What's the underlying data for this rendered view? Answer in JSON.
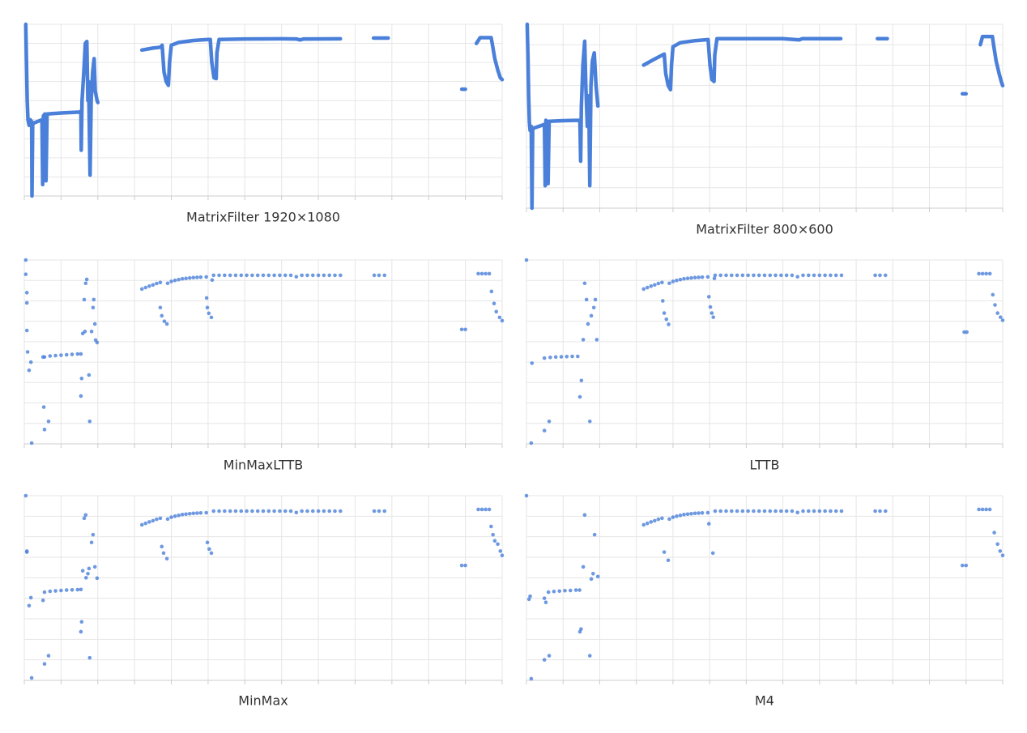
{
  "chart_data": [
    {
      "type": "line",
      "title": "MatrixFilter 1920×1080",
      "color": "#4a80d9",
      "line_width": 4.5,
      "grid": true,
      "xlim": [
        0,
        130
      ],
      "ylim": [
        0,
        90
      ],
      "xticks": [
        0,
        10,
        20,
        30,
        40,
        50,
        60,
        70,
        80,
        90,
        100,
        110,
        120,
        130
      ],
      "yticks": [
        0,
        10,
        20,
        30,
        40,
        50,
        60,
        70,
        80,
        90
      ],
      "x": [
        0.4,
        0.6,
        0.8,
        1.0,
        1.3,
        1.6,
        2.0,
        2.1,
        2.3,
        4.8,
        5.0,
        5.2,
        5.6,
        5.9,
        6.2,
        10,
        15,
        15.4,
        15.5,
        15.7,
        16.2,
        16.6,
        17.0,
        17.3,
        17.5,
        17.9,
        18.2,
        18.6,
        19.0,
        19.3,
        19.8,
        20,
        null,
        32,
        35,
        37,
        37.5,
        38,
        38.6,
        39.2,
        39.5,
        40,
        42,
        46,
        50,
        50.6,
        51,
        51.6,
        52.2,
        52.4,
        53,
        60,
        70,
        74,
        75,
        76,
        86,
        null,
        95,
        99,
        null,
        119,
        120,
        null,
        123,
        124,
        127,
        127.3,
        128,
        128.8,
        129.5,
        130
      ],
      "values": [
        90,
        70,
        50,
        40,
        37,
        40,
        39,
        0,
        38,
        40,
        6,
        42,
        43,
        8,
        43,
        43.5,
        44,
        44.5,
        24,
        50,
        65,
        80,
        81,
        50,
        60,
        11,
        50,
        65,
        72,
        55,
        50,
        49,
        null,
        76.5,
        77.5,
        78,
        79,
        65,
        60,
        58,
        70,
        79,
        80.5,
        81.5,
        82,
        82,
        70,
        62,
        61.5,
        75,
        82,
        82.3,
        82.4,
        82.3,
        81.8,
        82.3,
        82.4,
        null,
        82.8,
        82.8,
        null,
        56,
        56,
        null,
        80,
        83,
        83,
        80,
        72,
        66,
        62,
        61
      ]
    },
    {
      "type": "line",
      "title": "MatrixFilter 800×600",
      "color": "#4a80d9",
      "line_width": 4.5,
      "grid": true,
      "xlim": [
        0,
        130
      ],
      "ylim": [
        0,
        90
      ],
      "xticks": [
        0,
        10,
        20,
        30,
        40,
        50,
        60,
        70,
        80,
        90,
        100,
        110,
        120,
        130
      ],
      "yticks": [
        0,
        10,
        20,
        30,
        40,
        50,
        60,
        70,
        80,
        90
      ],
      "x": [
        0.2,
        0.4,
        0.6,
        0.8,
        1.0,
        1.3,
        1.5,
        1.7,
        4.9,
        5.1,
        5.3,
        5.6,
        5.9,
        6.2,
        10,
        14.6,
        14.8,
        15.0,
        15.4,
        15.9,
        16.2,
        16.6,
        17.0,
        17.3,
        17.6,
        18.0,
        18.5,
        19.0,
        19.5,
        null,
        32,
        35,
        37.6,
        38,
        38.7,
        39.3,
        39.6,
        40,
        42,
        46,
        49.6,
        50.1,
        50.6,
        51.2,
        51.4,
        52,
        60,
        70,
        74.5,
        75.3,
        76,
        85.8,
        null,
        95.8,
        98.5,
        null,
        119,
        120,
        null,
        123.9,
        124.5,
        127.2,
        127.5,
        128.2,
        129,
        129.6,
        130
      ],
      "values": [
        90,
        75,
        55,
        42,
        38,
        40,
        0,
        39,
        41,
        11,
        43,
        42.5,
        12,
        42.5,
        42.8,
        43,
        23,
        50,
        70,
        81.7,
        60,
        40,
        55,
        11,
        60,
        72,
        76,
        60,
        50,
        null,
        70,
        73,
        75.4,
        66,
        60,
        58,
        70,
        79,
        81,
        82,
        82.5,
        70,
        63,
        62,
        75,
        83,
        83,
        83,
        82.4,
        83,
        83,
        83,
        null,
        83,
        83,
        null,
        56,
        56,
        null,
        80,
        84,
        84,
        80,
        72,
        66,
        62,
        60
      ]
    },
    {
      "type": "scatter",
      "title": "MinMaxLTTB",
      "color": "#4a80d9",
      "marker_size": 2.3,
      "grid": true,
      "xlim": [
        0,
        130
      ],
      "ylim": [
        0,
        90
      ],
      "xticks": [
        0,
        10,
        20,
        30,
        40,
        50,
        60,
        70,
        80,
        90,
        100,
        110,
        120,
        130
      ],
      "yticks": [
        0,
        10,
        20,
        30,
        40,
        50,
        60,
        70,
        80,
        90
      ],
      "x": [
        0.4,
        0.4,
        0.7,
        0.7,
        0.7,
        0.9,
        1.3,
        1.8,
        2,
        5.1,
        5.3,
        5.5,
        6.6,
        5.5,
        7,
        8.5,
        10,
        11.5,
        13,
        14.5,
        15.4,
        15.4,
        15.6,
        15.9,
        16.3,
        16.7,
        17,
        16.5,
        17.6,
        17.8,
        18.3,
        18.7,
        18.9,
        19.2,
        19.4,
        19.8,
        32,
        33,
        34,
        35,
        36,
        37,
        39,
        40,
        41,
        42,
        43,
        44,
        45,
        46,
        47,
        48,
        49.5,
        51.5,
        53,
        54.5,
        56,
        57.5,
        59,
        60.5,
        62,
        63.5,
        65,
        66.5,
        68,
        69.5,
        71,
        72.5,
        74,
        75.5,
        77,
        78.5,
        80,
        81.5,
        83,
        84.5,
        86,
        95.2,
        96.5,
        98,
        123.5,
        124.5,
        125.5,
        126.5,
        37,
        37.4,
        38.1,
        38.8,
        49.6,
        49.8,
        50.2,
        50.9,
        51.1,
        119,
        120,
        127.1,
        127.8,
        128.4,
        129.3,
        130
      ],
      "values": [
        90,
        83,
        74,
        69,
        55.5,
        45,
        36,
        40,
        0.4,
        42.5,
        18,
        7,
        11,
        42.5,
        43,
        43.2,
        43.4,
        43.6,
        43.8,
        44,
        44,
        23.4,
        32,
        54,
        70.6,
        78.6,
        80.5,
        55,
        33.7,
        11,
        55,
        66.7,
        70.6,
        58.7,
        50.8,
        49.6,
        75.8,
        76.5,
        77.2,
        77.8,
        78.5,
        79,
        78.6,
        79.5,
        80,
        80.4,
        80.8,
        81,
        81.2,
        81.4,
        81.5,
        81.6,
        81.7,
        82.5,
        82.5,
        82.5,
        82.5,
        82.5,
        82.5,
        82.5,
        82.5,
        82.5,
        82.5,
        82.5,
        82.5,
        82.5,
        82.5,
        82.5,
        81.8,
        82.5,
        82.5,
        82.5,
        82.5,
        82.5,
        82.5,
        82.5,
        82.5,
        82.5,
        82.5,
        82.5,
        83.3,
        83.3,
        83.3,
        83.3,
        66.7,
        62.7,
        60,
        58.7,
        71.4,
        66.7,
        63.9,
        61.9,
        80.2,
        56,
        56,
        74.6,
        68.7,
        64.7,
        61.9,
        60.3
      ]
    },
    {
      "type": "scatter",
      "title": "LTTB",
      "color": "#4a80d9",
      "marker_size": 2.3,
      "grid": true,
      "xlim": [
        0,
        130
      ],
      "ylim": [
        0,
        90
      ],
      "xticks": [
        0,
        10,
        20,
        30,
        40,
        50,
        60,
        70,
        80,
        90,
        100,
        110,
        120,
        130
      ],
      "yticks": [
        0,
        10,
        20,
        30,
        40,
        50,
        60,
        70,
        80,
        90
      ],
      "x": [
        0,
        1.5,
        1.3,
        4.9,
        6.2,
        4.9,
        6.5,
        8,
        9.5,
        11,
        12.5,
        14,
        14.6,
        15,
        15.5,
        15.9,
        16.4,
        16.8,
        17.3,
        17.7,
        18.4,
        18.8,
        19.2,
        32,
        33,
        34,
        35,
        36,
        37,
        39,
        40,
        41,
        42,
        43,
        44,
        45,
        46,
        47,
        48,
        49.5,
        51.5,
        53,
        54.5,
        56,
        57.5,
        59,
        60.5,
        62,
        63.5,
        65,
        66.5,
        68,
        69.5,
        71,
        72.5,
        74,
        75.5,
        77,
        78.5,
        80,
        81.5,
        83,
        84.5,
        86,
        95.2,
        96.5,
        98,
        123.5,
        124.5,
        125.5,
        126.5,
        37.2,
        37.6,
        38.2,
        38.8,
        49.8,
        50.2,
        50.6,
        51,
        51.3,
        119.5,
        120.2,
        127.3,
        127.9,
        128.6,
        129.4,
        130
      ],
      "values": [
        90,
        39.5,
        0.4,
        6.5,
        11,
        42,
        42.3,
        42.5,
        42.6,
        42.7,
        42.8,
        42.8,
        23,
        31,
        51,
        78.6,
        70.6,
        58.7,
        11,
        62.7,
        66.7,
        70.6,
        51,
        75.8,
        76.5,
        77.2,
        77.8,
        78.5,
        79,
        78.6,
        79.5,
        80,
        80.4,
        80.8,
        81,
        81.2,
        81.4,
        81.5,
        81.6,
        81.7,
        82.5,
        82.5,
        82.5,
        82.5,
        82.5,
        82.5,
        82.5,
        82.5,
        82.5,
        82.5,
        82.5,
        82.5,
        82.5,
        82.5,
        82.5,
        81.8,
        82.5,
        82.5,
        82.5,
        82.5,
        82.5,
        82.5,
        82.5,
        82.5,
        82.5,
        82.5,
        82.5,
        83.3,
        83.3,
        83.3,
        83.3,
        70,
        64,
        61,
        58.5,
        72,
        67,
        64,
        62,
        81,
        54.7,
        54.7,
        73,
        68,
        64,
        62,
        60.5
      ]
    },
    {
      "type": "scatter",
      "title": "MinMax",
      "color": "#4a80d9",
      "marker_size": 2.3,
      "grid": true,
      "xlim": [
        0,
        130
      ],
      "ylim": [
        0,
        90
      ],
      "xticks": [
        0,
        10,
        20,
        30,
        40,
        50,
        60,
        70,
        80,
        90,
        100,
        110,
        120,
        130
      ],
      "yticks": [
        0,
        10,
        20,
        30,
        40,
        50,
        60,
        70,
        80,
        90
      ],
      "x": [
        0.4,
        0.7,
        0.7,
        1.3,
        1.8,
        2,
        5.1,
        5.5,
        6.6,
        5.5,
        7,
        8.5,
        10,
        11.5,
        13,
        14.5,
        15.4,
        15.4,
        15.6,
        15.9,
        16.3,
        16.7,
        17.6,
        17.8,
        18.3,
        18.7,
        19.2,
        19.8,
        16.8,
        17.3,
        32,
        33,
        34,
        35,
        36,
        37,
        39,
        40,
        41,
        42,
        43,
        44,
        45,
        46,
        47,
        48,
        49.5,
        51.5,
        53,
        54.5,
        56,
        57.5,
        59,
        60.5,
        62,
        63.5,
        65,
        66.5,
        68,
        69.5,
        71,
        72.5,
        74,
        75.5,
        77,
        78.5,
        80,
        81.5,
        83,
        84.5,
        86,
        95.2,
        96.5,
        98,
        123.5,
        124.5,
        125.5,
        126.5,
        37.4,
        37.9,
        38.8,
        49.8,
        50.3,
        50.9,
        119,
        120,
        127,
        127.5,
        128,
        128.8,
        129.5,
        130
      ],
      "values": [
        90,
        62.5,
        63,
        36.4,
        40.3,
        1.2,
        39,
        8,
        12,
        43,
        43.4,
        43.6,
        43.8,
        44,
        44.1,
        44.2,
        44.3,
        23.7,
        28.5,
        53.4,
        79,
        80.6,
        54.5,
        11,
        67.2,
        71,
        55.3,
        49.8,
        50,
        52,
        75.8,
        76.5,
        77.2,
        77.8,
        78.5,
        79,
        78.6,
        79.5,
        80,
        80.4,
        80.8,
        81,
        81.2,
        81.4,
        81.5,
        81.6,
        81.7,
        82.5,
        82.5,
        82.5,
        82.5,
        82.5,
        82.5,
        82.5,
        82.5,
        82.5,
        82.5,
        82.5,
        82.5,
        82.5,
        82.5,
        82.5,
        81.8,
        82.5,
        82.5,
        82.5,
        82.5,
        82.5,
        82.5,
        82.5,
        82.5,
        82.5,
        82.5,
        82.5,
        83.3,
        83.3,
        83.3,
        83.3,
        65.2,
        62,
        59.3,
        67.2,
        64,
        62,
        56,
        56,
        75,
        71,
        68,
        66.4,
        63,
        60.9
      ]
    },
    {
      "type": "scatter",
      "title": "M4",
      "color": "#4a80d9",
      "marker_size": 2.3,
      "grid": true,
      "xlim": [
        0,
        130
      ],
      "ylim": [
        0,
        90
      ],
      "xticks": [
        0,
        10,
        20,
        30,
        40,
        50,
        60,
        70,
        80,
        90,
        100,
        110,
        120,
        130
      ],
      "yticks": [
        0,
        10,
        20,
        30,
        40,
        50,
        60,
        70,
        80,
        90
      ],
      "x": [
        0,
        0.7,
        1.0,
        1.3,
        4.9,
        6.2,
        4.9,
        5.3,
        6,
        7.5,
        9,
        10.5,
        12,
        13.5,
        14.5,
        14.6,
        14.9,
        15.5,
        15.9,
        17.3,
        17.7,
        18.6,
        19.5,
        18.2,
        32,
        33,
        34,
        35,
        36,
        37,
        39,
        40,
        41,
        42,
        43,
        44,
        45,
        46,
        47,
        48,
        49.5,
        51.5,
        53,
        54.5,
        56,
        57.5,
        59,
        60.5,
        62,
        63.5,
        65,
        66.5,
        68,
        69.5,
        71,
        72.5,
        74,
        75.5,
        77,
        78.5,
        80,
        81.5,
        83,
        84.5,
        86,
        95.2,
        96.5,
        98,
        123.5,
        124.5,
        125.5,
        126.5,
        37.6,
        38.7,
        49.8,
        50.9,
        119,
        120,
        127.7,
        128.6,
        129.3,
        130
      ],
      "values": [
        90,
        39.5,
        41,
        0.8,
        10,
        12,
        40,
        38,
        43,
        43.3,
        43.5,
        43.7,
        43.8,
        44,
        44,
        23.7,
        25,
        55.3,
        80.6,
        12,
        49.4,
        71,
        50.6,
        52,
        75.8,
        76.5,
        77.2,
        77.8,
        78.5,
        79,
        78.6,
        79.5,
        80,
        80.4,
        80.8,
        81,
        81.2,
        81.4,
        81.5,
        81.6,
        81.7,
        82.5,
        82.5,
        82.5,
        82.5,
        82.5,
        82.5,
        82.5,
        82.5,
        82.5,
        82.5,
        82.5,
        82.5,
        82.5,
        82.5,
        82.5,
        81.8,
        82.5,
        82.5,
        82.5,
        82.5,
        82.5,
        82.5,
        82.5,
        82.5,
        82.5,
        82.5,
        82.5,
        83.3,
        83.3,
        83.3,
        83.3,
        62.5,
        58.5,
        76.3,
        62,
        56,
        56,
        72,
        66.4,
        63,
        60.9
      ]
    }
  ]
}
